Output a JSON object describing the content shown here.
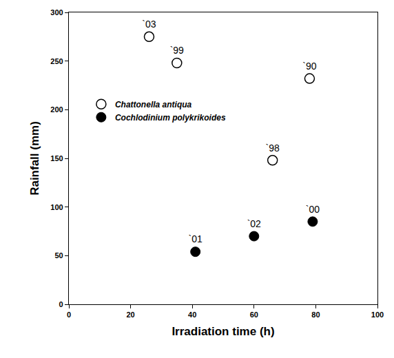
{
  "chart_data": {
    "type": "scatter",
    "x_label": "Irradiation time (h)",
    "y_label": "Rainfall (mm)",
    "xlim": [
      0,
      100
    ],
    "xticks": [
      0,
      20,
      40,
      60,
      80,
      100
    ],
    "ylim": [
      0,
      300
    ],
    "yticks": [
      0,
      50,
      100,
      150,
      200,
      250,
      300
    ],
    "grid": false,
    "legend": "left",
    "series": [
      {
        "name": "Chattonella antiqua",
        "color": "#000000",
        "marker": "open circle",
        "x": [
          26,
          35,
          78,
          66
        ],
        "values": [
          275,
          248,
          232,
          148
        ],
        "labels": [
          "`03",
          "`99",
          "`90",
          "`98"
        ]
      },
      {
        "name": "Cochlodinium polykrikoides",
        "color": "#000000",
        "marker": "filled circle",
        "x": [
          41,
          60,
          79
        ],
        "values": [
          54,
          70,
          85
        ],
        "labels": [
          "`01",
          "`02",
          "`00"
        ]
      }
    ]
  }
}
